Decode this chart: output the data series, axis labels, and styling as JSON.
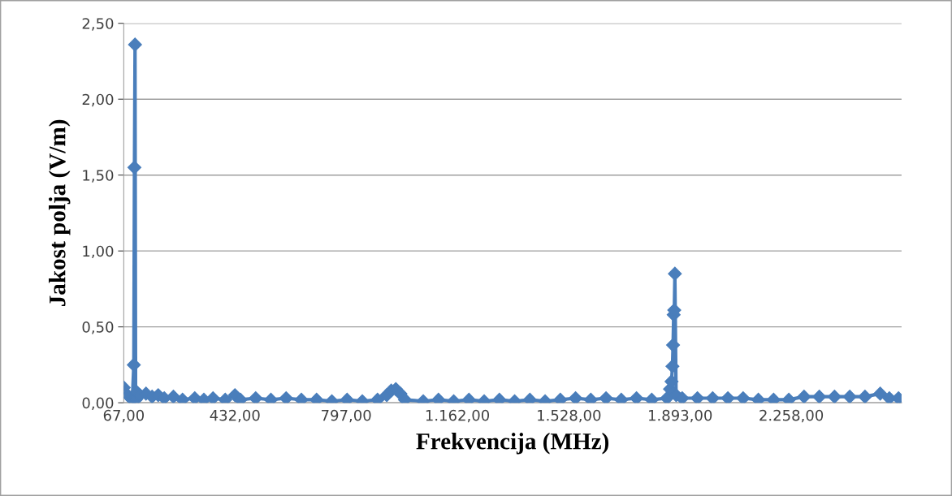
{
  "chart_data": {
    "type": "line",
    "xlabel": "Frekvencija (MHz)",
    "ylabel": "Jakost polja (V/m)",
    "xlim": [
      67,
      2620
    ],
    "ylim": [
      0,
      2.5
    ],
    "xticks": [
      {
        "value": 67,
        "label": "67,00"
      },
      {
        "value": 432,
        "label": "432,00"
      },
      {
        "value": 797,
        "label": "797,00"
      },
      {
        "value": 1162,
        "label": "1.162,00"
      },
      {
        "value": 1528,
        "label": "1.528,00"
      },
      {
        "value": 1893,
        "label": "1.893,00"
      },
      {
        "value": 2258,
        "label": "2.258,00"
      }
    ],
    "yticks": [
      {
        "value": 0,
        "label": "0,00"
      },
      {
        "value": 0.5,
        "label": "0,50"
      },
      {
        "value": 1,
        "label": "1,00"
      },
      {
        "value": 1.5,
        "label": "1,50"
      },
      {
        "value": 2,
        "label": "2,00"
      },
      {
        "value": 2.5,
        "label": "2,50"
      }
    ],
    "grid": "y",
    "marker": "diamond",
    "line_style": "solid",
    "series": [
      {
        "color": "#4a7ebb",
        "x": [
          67,
          80,
          95,
          100,
          102,
          104,
          106,
          110,
          120,
          140,
          160,
          180,
          200,
          230,
          260,
          300,
          330,
          360,
          400,
          432,
          450,
          500,
          550,
          600,
          650,
          700,
          750,
          800,
          850,
          900,
          930,
          945,
          960,
          975,
          990,
          1050,
          1100,
          1150,
          1200,
          1250,
          1300,
          1350,
          1400,
          1450,
          1500,
          1550,
          1600,
          1650,
          1700,
          1750,
          1800,
          1850,
          1860,
          1865,
          1868,
          1870,
          1872,
          1874,
          1876,
          1880,
          1900,
          1950,
          2000,
          2050,
          2100,
          2150,
          2200,
          2250,
          2300,
          2350,
          2400,
          2450,
          2500,
          2550,
          2580,
          2610
        ],
        "values": [
          0.1,
          0.05,
          0.02,
          0.25,
          1.55,
          2.36,
          0.02,
          0.07,
          0.05,
          0.06,
          0.04,
          0.05,
          0.03,
          0.04,
          0.02,
          0.03,
          0.02,
          0.03,
          0.02,
          0.05,
          0.02,
          0.03,
          0.02,
          0.03,
          0.02,
          0.02,
          0.01,
          0.02,
          0.01,
          0.02,
          0.05,
          0.08,
          0.09,
          0.06,
          0.02,
          0.01,
          0.02,
          0.01,
          0.02,
          0.01,
          0.02,
          0.01,
          0.02,
          0.01,
          0.02,
          0.03,
          0.02,
          0.03,
          0.02,
          0.03,
          0.02,
          0.03,
          0.09,
          0.14,
          0.24,
          0.38,
          0.58,
          0.61,
          0.85,
          0.05,
          0.03,
          0.03,
          0.03,
          0.03,
          0.03,
          0.02,
          0.02,
          0.02,
          0.04,
          0.04,
          0.04,
          0.04,
          0.04,
          0.06,
          0.03,
          0.03
        ]
      }
    ]
  }
}
